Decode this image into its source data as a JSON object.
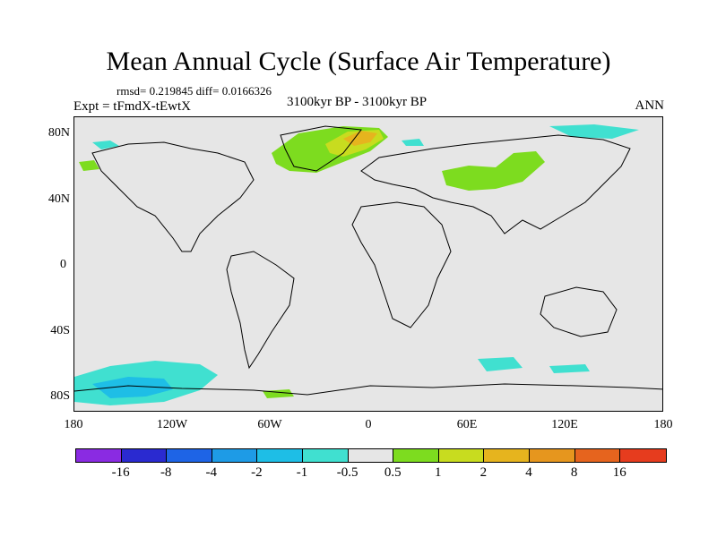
{
  "title": "Mean Annual Cycle (Surface Air Temperature)",
  "stats": "rmsd= 0.219845 diff= 0.0166326",
  "expt": "Expt = tFmdX-tEwtX",
  "period": "3100kyr BP - 3100kyr BP",
  "season": "ANN",
  "map": {
    "y_axis_labels": [
      "80N",
      "40N",
      "0",
      "40S",
      "80S"
    ],
    "x_axis_labels": [
      "180",
      "120W",
      "60W",
      "0",
      "60E",
      "120E",
      "180"
    ]
  },
  "colorbar": {
    "colors": [
      "#8a2be2",
      "#2a2ad0",
      "#1e64e6",
      "#1e9be6",
      "#1ebee6",
      "#40e0d0",
      "#e6e6e6",
      "#7ddc1f",
      "#c8dc1f",
      "#e6b41e",
      "#e6961e",
      "#e6641e",
      "#e63c1e"
    ],
    "labels": [
      "-16",
      "-8",
      "-4",
      "-2",
      "-1",
      "-0.5",
      "0.5",
      "1",
      "2",
      "4",
      "8",
      "16"
    ]
  }
}
